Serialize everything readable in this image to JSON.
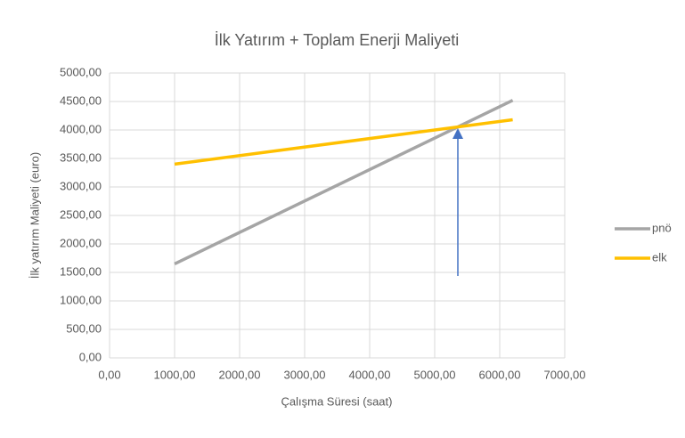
{
  "chart_data": {
    "type": "line",
    "title": "İlk Yatırım + Toplam Enerji Maliyeti",
    "x_label": "Çalışma Süresi (saat)",
    "y_label": "İlk yatırım Maliyeti (euro)",
    "x": [
      1000,
      6200
    ],
    "series": [
      {
        "name": "pnö",
        "color": "#a5a5a5",
        "values": [
          1650,
          4520
        ]
      },
      {
        "name": "elk",
        "color": "#ffc000",
        "values": [
          3400,
          4180
        ]
      }
    ],
    "xlim": [
      0,
      7000
    ],
    "xticks": [
      {
        "value": 0,
        "label": "0,00"
      },
      {
        "value": 1000,
        "label": "1000,00"
      },
      {
        "value": 2000,
        "label": "2000,00"
      },
      {
        "value": 3000,
        "label": "3000,00"
      },
      {
        "value": 4000,
        "label": "4000,00"
      },
      {
        "value": 5000,
        "label": "5000,00"
      },
      {
        "value": 6000,
        "label": "6000,00"
      },
      {
        "value": 7000,
        "label": "7000,00"
      }
    ],
    "ylim": [
      0,
      5000
    ],
    "yticks": [
      {
        "value": 0,
        "label": "0,00"
      },
      {
        "value": 500,
        "label": "500,00"
      },
      {
        "value": 1000,
        "label": "1000,00"
      },
      {
        "value": 1500,
        "label": "1500,00"
      },
      {
        "value": 2000,
        "label": "2000,00"
      },
      {
        "value": 2500,
        "label": "2500,00"
      },
      {
        "value": 3000,
        "label": "3000,00"
      },
      {
        "value": 3500,
        "label": "3500,00"
      },
      {
        "value": 4000,
        "label": "4000,00"
      },
      {
        "value": 4500,
        "label": "4500,00"
      },
      {
        "value": 5000,
        "label": "5000,00"
      }
    ],
    "grid": true,
    "legend": "right"
  }
}
